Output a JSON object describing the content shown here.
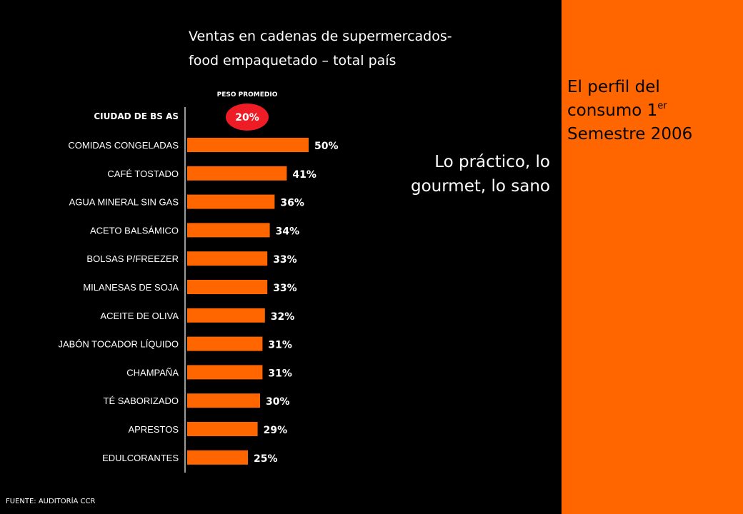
{
  "colors": {
    "background": "#000000",
    "accent": "#ff6600",
    "average_badge": "#ee1c25",
    "text": "#ffffff",
    "panel_text": "#000000"
  },
  "panel": {
    "title_line1": "El perfil del",
    "title_line2_prefix": "consumo 1",
    "title_line2_sup": "er",
    "title_line3": "Semestre 2006"
  },
  "chart_title": {
    "line1": "Ventas en cadenas de supermercados-",
    "line2": "food empaquetado – total país"
  },
  "tagline": {
    "line1": "Lo práctico, lo",
    "line2": "gourmet, lo sano"
  },
  "source": "FUENTE: AUDITORÍA CCR",
  "chart_data": {
    "type": "bar",
    "orientation": "horizontal",
    "group_label": "CIUDAD DE BS AS",
    "average": {
      "label": "PESO PROMEDIO",
      "value": 20,
      "display": "20%"
    },
    "categories": [
      "COMIDAS CONGELADAS",
      "CAFÉ TOSTADO",
      "AGUA MINERAL SIN GAS",
      "ACETO BALSÁMICO",
      "BOLSAS P/FREEZER",
      "MILANESAS DE SOJA",
      "ACEITE DE OLIVA",
      "JABÓN TOCADOR LÍQUIDO",
      "CHAMPAÑA",
      "TÉ SABORIZADO",
      "APRESTOS",
      "EDULCORANTES"
    ],
    "values": [
      50,
      41,
      36,
      34,
      33,
      33,
      32,
      31,
      31,
      30,
      29,
      25
    ],
    "value_labels": [
      "50%",
      "41%",
      "36%",
      "34%",
      "33%",
      "33%",
      "32%",
      "31%",
      "31%",
      "30%",
      "29%",
      "25%"
    ],
    "unit": "%",
    "xlim": [
      0,
      50
    ],
    "grid": false,
    "legend": "none"
  }
}
